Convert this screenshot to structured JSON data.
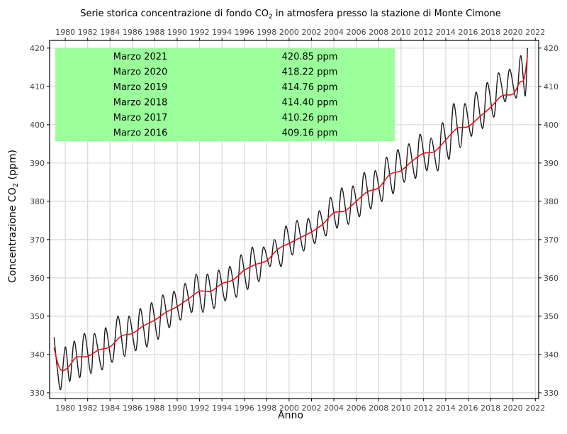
{
  "chart_data": {
    "type": "line",
    "title_prefix": "Serie storica concentrazione di fondo CO",
    "title_sub": "2",
    "title_suffix": " in atmosfera presso la stazione di Monte Cimone",
    "xlabel": "Anno",
    "ylabel_prefix": "Concentrazione CO",
    "ylabel_sub": "2",
    "ylabel_suffix": " (ppm)",
    "xlim": [
      1978.6,
      2022.3
    ],
    "ylim": [
      328.5,
      422
    ],
    "x_ticks": [
      1980,
      1982,
      1984,
      1986,
      1988,
      1990,
      1992,
      1994,
      1996,
      1998,
      2000,
      2002,
      2004,
      2006,
      2008,
      2010,
      2012,
      2014,
      2016,
      2018,
      2020,
      2022
    ],
    "y_ticks": [
      330,
      340,
      350,
      360,
      370,
      380,
      390,
      400,
      410,
      420
    ],
    "grid": true,
    "colors": {
      "monthly": "#1a1a1a",
      "trend": "#e8101a",
      "table_bg": "#9aff9a"
    },
    "series": [
      {
        "role": "monthly",
        "x": [
          1979.0,
          1979.3,
          1979.6,
          1980.0,
          1980.4,
          1980.8,
          1981.3,
          1981.7,
          1982.3,
          1982.6,
          1983.3,
          1983.6,
          1984.2,
          1984.7,
          1985.3,
          1985.7,
          1986.3,
          1986.7,
          1987.3,
          1987.7,
          1988.3,
          1988.7,
          1989.3,
          1989.7,
          1990.3,
          1990.7,
          1991.3,
          1991.7,
          1992.3,
          1992.7,
          1993.3,
          1993.7,
          1994.3,
          1994.7,
          1995.3,
          1995.7,
          1996.3,
          1996.7,
          1997.3,
          1997.7,
          1998.3,
          1998.7,
          1999.3,
          1999.7,
          2000.3,
          2000.7,
          2001.3,
          2001.7,
          2002.3,
          2002.7,
          2003.3,
          2003.7,
          2004.3,
          2004.7,
          2005.3,
          2005.7,
          2006.3,
          2006.7,
          2007.3,
          2007.7,
          2008.3,
          2008.7,
          2009.3,
          2009.7,
          2010.3,
          2010.7,
          2011.3,
          2011.7,
          2012.3,
          2012.7,
          2013.3,
          2013.7,
          2014.3,
          2014.7,
          2015.3,
          2015.7,
          2016.3,
          2016.7,
          2017.3,
          2017.7,
          2018.3,
          2018.7,
          2019.3,
          2019.7,
          2020.3,
          2020.7,
          2021.1,
          2021.3
        ],
        "y": [
          344.5,
          336,
          331,
          342,
          333,
          343.5,
          334,
          345.5,
          335,
          345.5,
          336,
          347,
          338,
          350,
          339.5,
          350,
          341,
          352,
          342,
          353.5,
          344,
          355.5,
          347,
          356.5,
          349,
          358.5,
          351,
          361,
          351,
          361,
          352,
          362,
          354,
          363,
          355,
          366,
          357,
          368,
          359,
          368,
          363,
          370,
          363,
          373.5,
          366,
          375,
          367,
          375.5,
          369,
          377.5,
          371,
          381,
          373,
          383.5,
          374,
          384,
          376,
          387.5,
          378,
          388,
          380,
          391.5,
          382,
          393.5,
          385,
          395,
          386,
          397.5,
          388,
          396.5,
          388,
          400.5,
          391,
          405.5,
          394,
          405.5,
          397,
          408.5,
          399,
          411,
          402,
          413.5,
          406,
          414.5,
          407,
          418,
          407.5,
          420
        ]
      },
      {
        "role": "trend",
        "x": [
          1979.0,
          1979.3,
          1979.6,
          1980.0,
          1980.5,
          1981.0,
          1982.0,
          1983.0,
          1984.0,
          1985.0,
          1986.0,
          1987.0,
          1988.0,
          1989.0,
          1990.0,
          1991.0,
          1992.0,
          1993.0,
          1994.0,
          1995.0,
          1996.0,
          1997.0,
          1998.0,
          1999.0,
          2000.0,
          2001.0,
          2002.0,
          2003.0,
          2004.0,
          2005.0,
          2006.0,
          2007.0,
          2008.0,
          2009.0,
          2010.0,
          2011.0,
          2012.0,
          2013.0,
          2014.0,
          2015.0,
          2016.0,
          2017.0,
          2018.0,
          2019.0,
          2020.0,
          2020.6,
          2021.0,
          2021.3
        ],
        "y": [
          341.8,
          338,
          336,
          336,
          337.5,
          339.3,
          339.5,
          341.2,
          342,
          344.8,
          345.5,
          347.5,
          349,
          351,
          352.5,
          354.5,
          356.5,
          356.5,
          358.5,
          359.5,
          362,
          363.5,
          364.5,
          367.5,
          369,
          370.5,
          372,
          374,
          377,
          377.5,
          380,
          382.5,
          383.5,
          387,
          388,
          390.5,
          392.5,
          393,
          396,
          399,
          399.5,
          402,
          404.5,
          407.5,
          408,
          411,
          412,
          418
        ]
      }
    ],
    "annotation_table": [
      {
        "label": "Marzo 2021",
        "value": "420.85 ppm"
      },
      {
        "label": "Marzo 2020",
        "value": "418.22 ppm"
      },
      {
        "label": "Marzo 2019",
        "value": "414.76 ppm"
      },
      {
        "label": "Marzo 2018",
        "value": "414.40 ppm"
      },
      {
        "label": "Marzo 2017",
        "value": "410.26 ppm"
      },
      {
        "label": "Marzo 2016",
        "value": "409.16 ppm"
      }
    ]
  }
}
